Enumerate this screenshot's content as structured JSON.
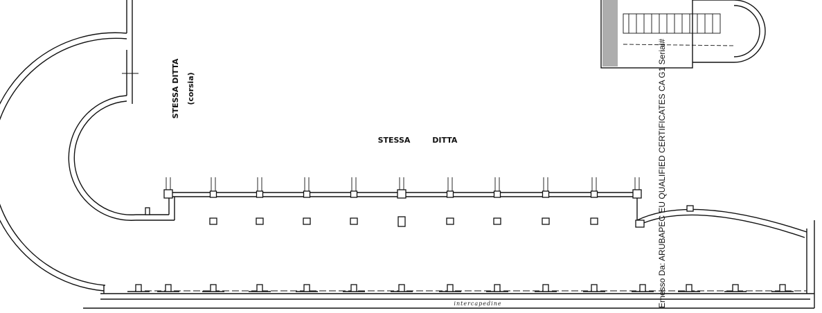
{
  "labels": {
    "corridor_firm": "STESSA DITTA",
    "corridor_note": "(corsia)",
    "main_firm": "STESSA DITTA",
    "cavity": "intercapedine"
  },
  "stamp": "Emesso Da: ARUBAPEC EU QUALIFIED CERTIFICATES CA G1 Serial#"
}
